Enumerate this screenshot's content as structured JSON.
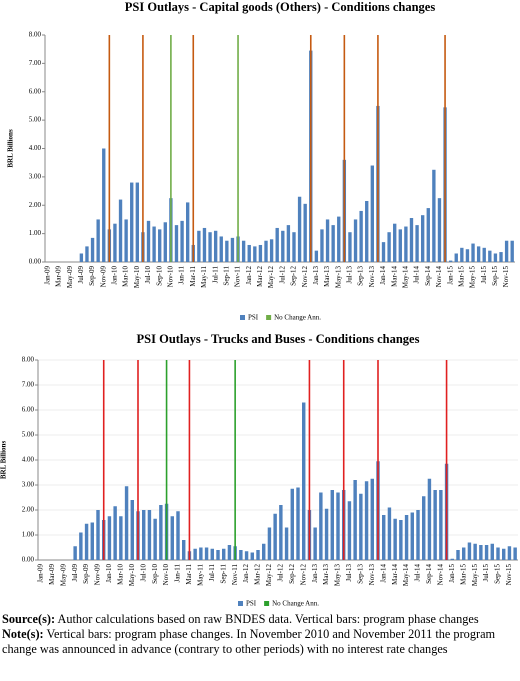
{
  "chart_data": [
    {
      "type": "bar",
      "title": "PSI Outlays - Capital goods (Others) - Conditions changes",
      "y_label": "BRL Billions",
      "categories": [
        "Jan-09",
        null,
        "Mar-09",
        null,
        "May-09",
        null,
        "Jul-09",
        null,
        "Sep-09",
        null,
        "Nov-09",
        null,
        "Jan-10",
        null,
        "Mar-10",
        null,
        "May-10",
        null,
        "Jul-10",
        null,
        "Sep-10",
        null,
        "Nov-10",
        null,
        "Jan-11",
        null,
        "Mar-11",
        null,
        "May-11",
        null,
        "Jul-11",
        null,
        "Sep-11",
        null,
        "Nov-11",
        null,
        "Jan-12",
        null,
        "Mar-12",
        null,
        "May-12",
        null,
        "Jul-12",
        null,
        "Sep-12",
        null,
        "Nov-12",
        null,
        "Jan-13",
        null,
        "Mar-13",
        null,
        "May-13",
        null,
        "Jul-13",
        null,
        "Sep-13",
        null,
        "Nov-13",
        null,
        "Jan-14",
        null,
        "Mar-14",
        null,
        "May-14",
        null,
        "Jul-14",
        null,
        "Sep-14",
        null,
        "Nov-14",
        null,
        "Jan-15",
        null,
        "Mar-15",
        null,
        "May-15",
        null,
        "Jul-15",
        null,
        "Sep-15",
        null,
        "Nov-15",
        null
      ],
      "series": [
        {
          "name": "PSI",
          "color": "#4f81bd",
          "values": [
            0,
            0,
            0,
            0,
            0,
            0,
            0.3,
            0.55,
            0.85,
            1.5,
            4.0,
            1.15,
            1.35,
            2.2,
            1.5,
            2.8,
            2.8,
            1.05,
            1.45,
            1.25,
            1.15,
            1.4,
            2.25,
            1.3,
            1.45,
            2.1,
            0.6,
            1.1,
            1.2,
            1.05,
            1.1,
            0.9,
            0.75,
            0.85,
            0.9,
            0.75,
            0.6,
            0.55,
            0.6,
            0.75,
            0.8,
            1.2,
            1.1,
            1.3,
            1.05,
            2.3,
            2.05,
            7.45,
            0.4,
            1.15,
            1.5,
            1.3,
            1.6,
            3.6,
            1.05,
            1.5,
            1.8,
            2.15,
            3.4,
            5.5,
            0.7,
            1.05,
            1.35,
            1.15,
            1.25,
            1.55,
            1.3,
            1.65,
            1.9,
            3.25,
            2.25,
            5.45,
            0.05,
            0.3,
            0.5,
            0.45,
            0.65,
            0.55,
            0.5,
            0.4,
            0.3,
            0.35,
            0.75,
            0.75
          ]
        },
        {
          "name": "No Change Ann.",
          "color": "#70ad47",
          "positions": [
            22,
            34
          ]
        }
      ],
      "phase_changes": [
        11,
        17,
        26,
        47,
        53,
        59,
        71
      ],
      "phase_change_color": "#c55a11",
      "ylim": [
        0,
        8
      ],
      "yticks": [
        {
          "value": 0,
          "label": "0.00"
        },
        {
          "value": 1,
          "label": "1.00"
        },
        {
          "value": 2,
          "label": "2.00"
        },
        {
          "value": 3,
          "label": "3.00"
        },
        {
          "value": 4,
          "label": "4.00"
        },
        {
          "value": 5,
          "label": "5.00"
        },
        {
          "value": 6,
          "label": "6.00"
        },
        {
          "value": 7,
          "label": "7.00"
        },
        {
          "value": 8,
          "label": "8.00"
        }
      ],
      "grid": false
    },
    {
      "type": "bar",
      "title": "PSI Outlays - Trucks and Buses - Conditions changes",
      "y_label": "BRL Billions",
      "categories": [
        "Jan-09",
        null,
        "Mar-09",
        null,
        "May-09",
        null,
        "Jul-09",
        null,
        "Sep-09",
        null,
        "Nov-09",
        null,
        "Jan-10",
        null,
        "Mar-10",
        null,
        "May-10",
        null,
        "Jul-10",
        null,
        "Sep-10",
        null,
        "Nov-10",
        null,
        "Jan-11",
        null,
        "Mar-11",
        null,
        "May-11",
        null,
        "Jul-11",
        null,
        "Sep-11",
        null,
        "Nov-11",
        null,
        "Jan-12",
        null,
        "Mar-12",
        null,
        "May-12",
        null,
        "Jul-12",
        null,
        "Sep-12",
        null,
        "Nov-12",
        null,
        "Jan-13",
        null,
        "Mar-13",
        null,
        "May-13",
        null,
        "Jul-13",
        null,
        "Sep-13",
        null,
        "Nov-13",
        null,
        "Jan-14",
        null,
        "Mar-14",
        null,
        "May-14",
        null,
        "Jul-14",
        null,
        "Sep-14",
        null,
        "Nov-14",
        null,
        "Jan-15",
        null,
        "Mar-15",
        null,
        "May-15",
        null,
        "Jul-15",
        null,
        "Sep-15",
        null,
        "Nov-15",
        null
      ],
      "series": [
        {
          "name": "PSI",
          "color": "#4f81bd",
          "values": [
            0,
            0,
            0,
            0,
            0,
            0,
            0.55,
            1.1,
            1.45,
            1.5,
            2.0,
            1.6,
            1.75,
            2.15,
            1.75,
            2.95,
            2.4,
            1.95,
            2.0,
            2.0,
            1.65,
            2.2,
            2.25,
            1.75,
            1.95,
            0.8,
            0.35,
            0.45,
            0.5,
            0.5,
            0.45,
            0.4,
            0.45,
            0.6,
            0.55,
            0.4,
            0.35,
            0.3,
            0.4,
            0.65,
            1.3,
            1.85,
            2.2,
            1.3,
            2.85,
            2.9,
            6.3,
            2.0,
            1.3,
            2.7,
            2.05,
            2.8,
            2.7,
            2.8,
            2.35,
            3.2,
            2.65,
            3.15,
            3.25,
            3.95,
            1.8,
            2.1,
            1.65,
            1.6,
            1.8,
            1.9,
            2.0,
            2.55,
            3.25,
            2.8,
            2.8,
            3.85,
            0.05,
            0.4,
            0.5,
            0.7,
            0.65,
            0.6,
            0.6,
            0.65,
            0.5,
            0.45,
            0.55,
            0.5
          ]
        },
        {
          "name": "No Change Ann.",
          "color": "#2ca02c",
          "positions": [
            22,
            34
          ]
        }
      ],
      "phase_changes": [
        11,
        17,
        26,
        47,
        53,
        59,
        71
      ],
      "phase_change_color": "#e02020",
      "ylim": [
        0,
        8
      ],
      "yticks": [
        {
          "value": 0,
          "label": "0.00"
        },
        {
          "value": 1,
          "label": "1.00"
        },
        {
          "value": 2,
          "label": "2.00"
        },
        {
          "value": 3,
          "label": "3.00"
        },
        {
          "value": 4,
          "label": "4.00"
        },
        {
          "value": 5,
          "label": "5.00"
        },
        {
          "value": 6,
          "label": "6.00"
        },
        {
          "value": 7,
          "label": "7.00"
        },
        {
          "value": 8,
          "label": "8.00"
        }
      ],
      "grid": true
    }
  ],
  "footer": {
    "source_label": "Source(s):",
    "source_text": "Author calculations based on raw BNDES data. Vertical bars: program phase changes",
    "note_label": "Note(s):",
    "note_text": "Vertical bars: program phase changes. In November 2010 and November 2011 the program change was announced in advance (contrary to other periods) with no interest rate changes"
  }
}
